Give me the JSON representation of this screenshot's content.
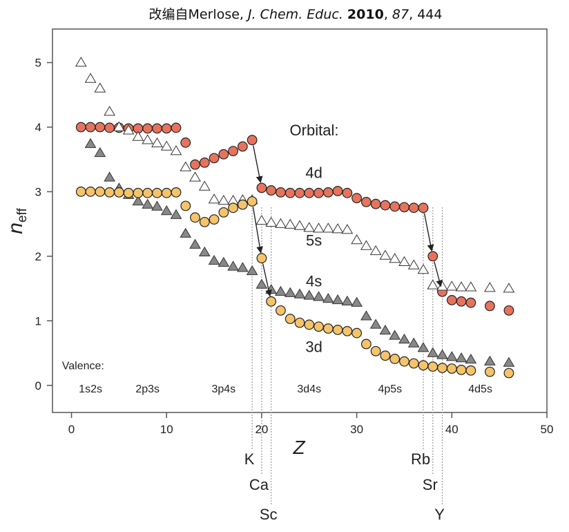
{
  "chart_data": {
    "type": "scatter",
    "title_parts": {
      "prefix": "改编自Merlose, ",
      "journal": "J. Chem. Educ.",
      "sep1": " ",
      "year": "2010",
      "sep2": ", ",
      "volume": "87",
      "sep3": ", ",
      "page": "444"
    },
    "xlabel": "Z",
    "ylabel_main": "n",
    "ylabel_sub": "eff",
    "xlim": [
      -2,
      50
    ],
    "ylim": [
      -0.42,
      5.52
    ],
    "xticks": [
      0,
      10,
      20,
      30,
      40,
      50
    ],
    "yticks": [
      0,
      1,
      2,
      3,
      4,
      5
    ],
    "legend_title": "Orbital:",
    "series": [
      {
        "name": "4d",
        "marker": "circle",
        "color": "#e8735d",
        "points": [
          [
            1,
            4.0
          ],
          [
            2,
            4.0
          ],
          [
            3,
            4.0
          ],
          [
            4,
            3.99
          ],
          [
            5,
            3.99
          ],
          [
            6,
            3.98
          ],
          [
            7,
            3.98
          ],
          [
            8,
            3.98
          ],
          [
            9,
            3.98
          ],
          [
            10,
            3.98
          ],
          [
            11,
            3.99
          ],
          [
            12,
            3.76
          ],
          [
            13,
            3.42
          ],
          [
            14,
            3.45
          ],
          [
            15,
            3.52
          ],
          [
            16,
            3.58
          ],
          [
            17,
            3.63
          ],
          [
            18,
            3.7
          ],
          [
            19,
            3.8
          ],
          [
            20,
            3.06
          ],
          [
            21,
            3.02
          ],
          [
            22,
            2.99
          ],
          [
            23,
            2.98
          ],
          [
            24,
            2.98
          ],
          [
            25,
            2.98
          ],
          [
            26,
            2.98
          ],
          [
            27,
            2.99
          ],
          [
            28,
            3.01
          ],
          [
            29,
            2.98
          ],
          [
            30,
            2.9
          ],
          [
            31,
            2.84
          ],
          [
            32,
            2.81
          ],
          [
            33,
            2.79
          ],
          [
            34,
            2.77
          ],
          [
            35,
            2.76
          ],
          [
            36,
            2.75
          ],
          [
            37,
            2.75
          ],
          [
            38,
            2.0
          ],
          [
            39,
            1.45
          ],
          [
            40,
            1.32
          ],
          [
            41,
            1.3
          ],
          [
            42,
            1.28
          ],
          [
            44,
            1.23
          ],
          [
            46,
            1.16
          ]
        ]
      },
      {
        "name": "5s",
        "marker": "triangle",
        "color": "#ffffff",
        "points": [
          [
            1,
            5.0
          ],
          [
            2,
            4.75
          ],
          [
            3,
            4.6
          ],
          [
            4,
            4.24
          ],
          [
            5,
            4.0
          ],
          [
            6,
            3.95
          ],
          [
            7,
            3.85
          ],
          [
            8,
            3.8
          ],
          [
            9,
            3.75
          ],
          [
            10,
            3.7
          ],
          [
            11,
            3.63
          ],
          [
            12,
            3.38
          ],
          [
            13,
            3.22
          ],
          [
            14,
            3.08
          ],
          [
            15,
            2.88
          ],
          [
            16,
            2.86
          ],
          [
            17,
            2.86
          ],
          [
            18,
            2.87
          ],
          [
            19,
            2.87
          ],
          [
            20,
            2.55
          ],
          [
            21,
            2.52
          ],
          [
            22,
            2.5
          ],
          [
            23,
            2.49
          ],
          [
            24,
            2.47
          ],
          [
            25,
            2.44
          ],
          [
            26,
            2.43
          ],
          [
            27,
            2.43
          ],
          [
            28,
            2.42
          ],
          [
            29,
            2.41
          ],
          [
            30,
            2.25
          ],
          [
            31,
            2.16
          ],
          [
            32,
            2.08
          ],
          [
            33,
            2.01
          ],
          [
            34,
            1.96
          ],
          [
            35,
            1.91
          ],
          [
            36,
            1.86
          ],
          [
            37,
            1.79
          ],
          [
            38,
            1.55
          ],
          [
            39,
            1.53
          ],
          [
            40,
            1.53
          ],
          [
            41,
            1.52
          ],
          [
            42,
            1.52
          ],
          [
            44,
            1.51
          ],
          [
            46,
            1.5
          ]
        ]
      },
      {
        "name": "4s",
        "marker": "triangle",
        "color": "#888888",
        "points": [
          [
            2,
            3.74
          ],
          [
            3,
            3.6
          ],
          [
            4,
            3.22
          ],
          [
            5,
            3.05
          ],
          [
            6,
            2.95
          ],
          [
            7,
            2.85
          ],
          [
            8,
            2.8
          ],
          [
            9,
            2.77
          ],
          [
            10,
            2.7
          ],
          [
            11,
            2.64
          ],
          [
            12,
            2.35
          ],
          [
            13,
            2.18
          ],
          [
            14,
            2.06
          ],
          [
            15,
            1.93
          ],
          [
            16,
            1.9
          ],
          [
            17,
            1.84
          ],
          [
            18,
            1.82
          ],
          [
            19,
            1.77
          ],
          [
            20,
            1.56
          ],
          [
            21,
            1.48
          ],
          [
            22,
            1.45
          ],
          [
            23,
            1.43
          ],
          [
            24,
            1.41
          ],
          [
            25,
            1.39
          ],
          [
            26,
            1.37
          ],
          [
            27,
            1.34
          ],
          [
            28,
            1.32
          ],
          [
            29,
            1.3
          ],
          [
            30,
            1.28
          ],
          [
            31,
            1.07
          ],
          [
            32,
            0.94
          ],
          [
            33,
            0.85
          ],
          [
            34,
            0.77
          ],
          [
            35,
            0.71
          ],
          [
            36,
            0.65
          ],
          [
            37,
            0.58
          ],
          [
            38,
            0.5
          ],
          [
            39,
            0.47
          ],
          [
            40,
            0.44
          ],
          [
            41,
            0.42
          ],
          [
            42,
            0.4
          ],
          [
            44,
            0.37
          ],
          [
            46,
            0.35
          ]
        ]
      },
      {
        "name": "3d",
        "marker": "circle",
        "color": "#f5c36a",
        "points": [
          [
            1,
            3.0
          ],
          [
            2,
            3.0
          ],
          [
            3,
            3.0
          ],
          [
            4,
            2.99
          ],
          [
            5,
            2.99
          ],
          [
            6,
            2.98
          ],
          [
            7,
            2.98
          ],
          [
            8,
            2.98
          ],
          [
            9,
            2.98
          ],
          [
            10,
            2.98
          ],
          [
            11,
            2.99
          ],
          [
            12,
            2.78
          ],
          [
            13,
            2.6
          ],
          [
            14,
            2.53
          ],
          [
            15,
            2.57
          ],
          [
            16,
            2.68
          ],
          [
            17,
            2.75
          ],
          [
            18,
            2.8
          ],
          [
            19,
            2.85
          ],
          [
            20,
            1.97
          ],
          [
            21,
            1.3
          ],
          [
            22,
            1.16
          ],
          [
            23,
            1.03
          ],
          [
            24,
            0.97
          ],
          [
            25,
            0.94
          ],
          [
            26,
            0.91
          ],
          [
            27,
            0.88
          ],
          [
            28,
            0.86
          ],
          [
            29,
            0.84
          ],
          [
            30,
            0.81
          ],
          [
            31,
            0.64
          ],
          [
            32,
            0.53
          ],
          [
            33,
            0.46
          ],
          [
            34,
            0.41
          ],
          [
            35,
            0.37
          ],
          [
            36,
            0.34
          ],
          [
            37,
            0.31
          ],
          [
            38,
            0.29
          ],
          [
            39,
            0.27
          ],
          [
            40,
            0.26
          ],
          [
            41,
            0.24
          ],
          [
            42,
            0.23
          ],
          [
            44,
            0.21
          ],
          [
            46,
            0.19
          ]
        ]
      }
    ],
    "arrows": [
      {
        "from": [
          19,
          3.8
        ],
        "to": [
          20,
          3.06
        ]
      },
      {
        "from": [
          19,
          2.85
        ],
        "to": [
          20,
          1.97
        ]
      },
      {
        "from": [
          20,
          1.97
        ],
        "to": [
          21,
          1.3
        ]
      },
      {
        "from": [
          37,
          2.75
        ],
        "to": [
          38,
          2.0
        ]
      },
      {
        "from": [
          38,
          2.0
        ],
        "to": [
          39,
          1.45
        ]
      }
    ],
    "series_labels": [
      {
        "text": "4d",
        "x": 25.5,
        "y": 3.3
      },
      {
        "text": "5s",
        "x": 25.5,
        "y": 2.25
      },
      {
        "text": "4s",
        "x": 25.5,
        "y": 1.62
      },
      {
        "text": "3d",
        "x": 25.5,
        "y": 0.6
      }
    ],
    "valence_title": "Valence:",
    "valence_groups": [
      {
        "text": "1s2s",
        "x": 2
      },
      {
        "text": "2p3s",
        "x": 8
      },
      {
        "text": "3p4s",
        "x": 16
      },
      {
        "text": "3d4s",
        "x": 25
      },
      {
        "text": "4p5s",
        "x": 33.5
      },
      {
        "text": "4d5s",
        "x": 43
      }
    ],
    "element_markers": [
      {
        "symbol": "K",
        "z": 19,
        "row": 1
      },
      {
        "symbol": "Ca",
        "z": 20,
        "row": 2
      },
      {
        "symbol": "Sc",
        "z": 21,
        "row": 3
      },
      {
        "symbol": "Rb",
        "z": 37,
        "row": 1
      },
      {
        "symbol": "Sr",
        "z": 38,
        "row": 2
      },
      {
        "symbol": "Y",
        "z": 39,
        "row": 3
      }
    ]
  }
}
